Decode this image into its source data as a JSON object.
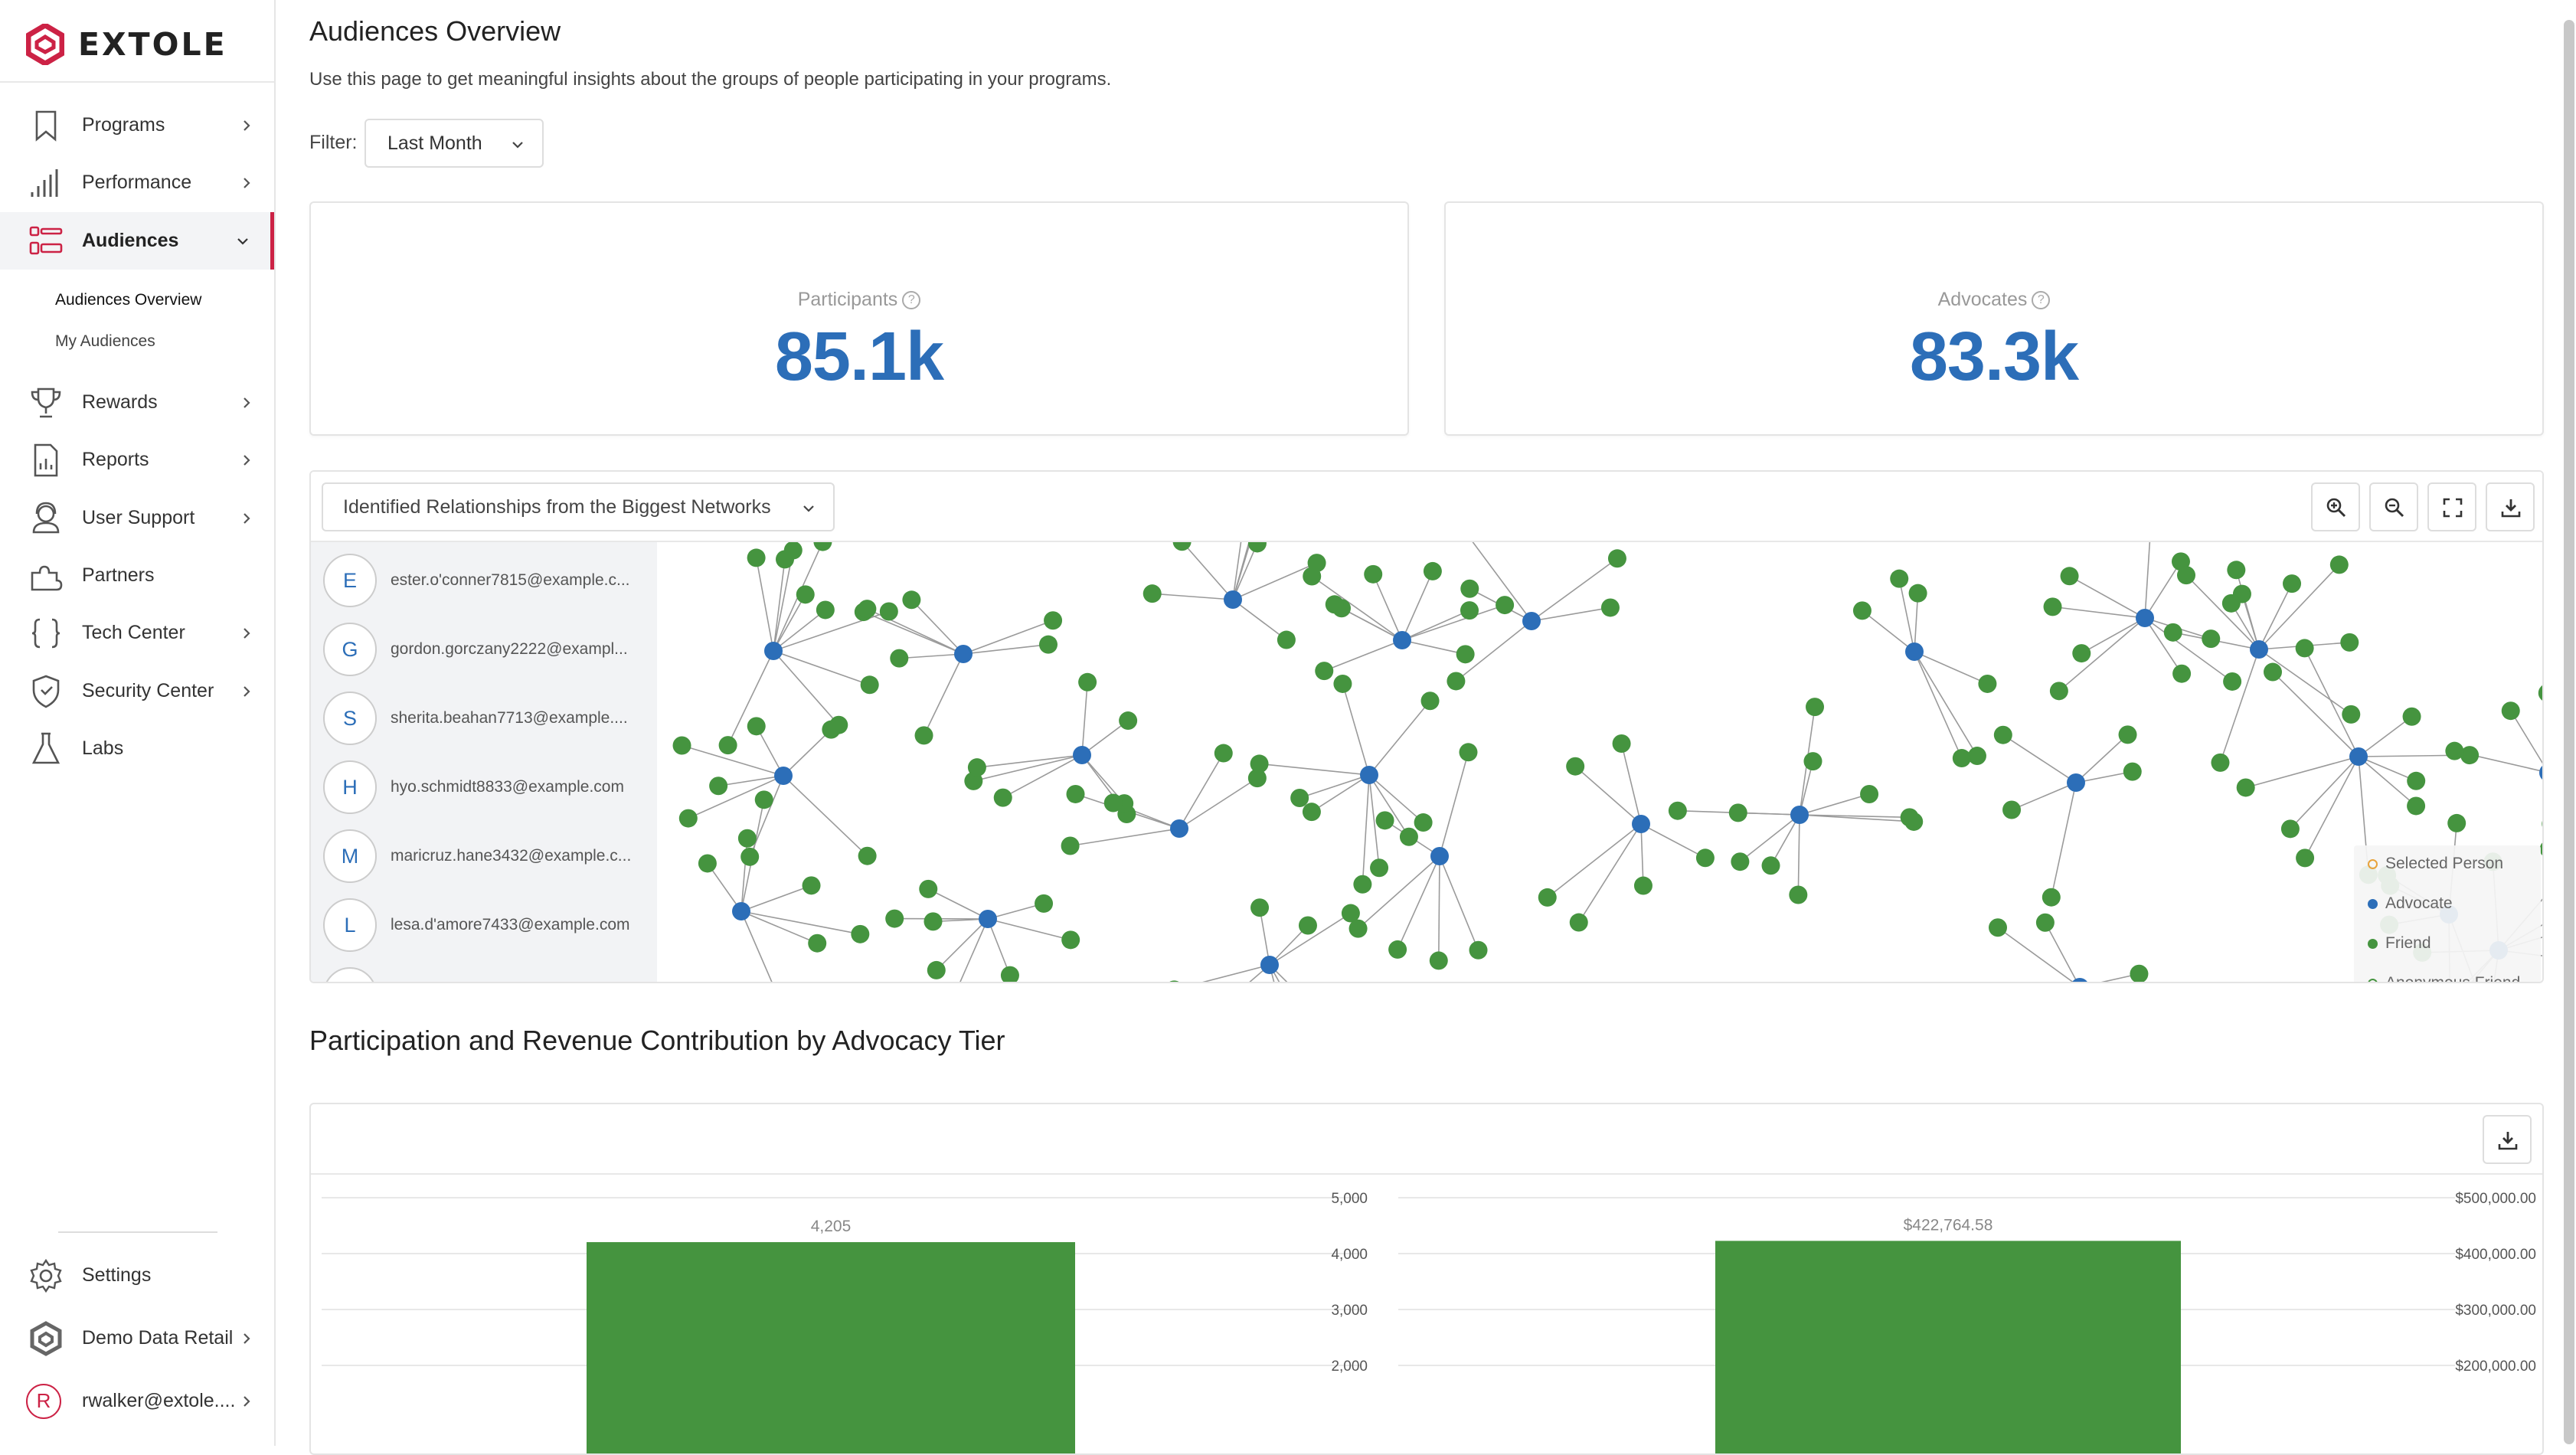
{
  "brand": {
    "name": "EXTOLE",
    "accent": "#cc2245",
    "primary": "#2c6eb8",
    "green": "#45943f"
  },
  "sidebar": {
    "items": [
      {
        "label": "Programs",
        "icon": "bookmark-icon",
        "chevron": true
      },
      {
        "label": "Performance",
        "icon": "bar-chart-icon",
        "chevron": true
      },
      {
        "label": "Audiences",
        "icon": "audiences-icon",
        "chevron": true,
        "active": true
      },
      {
        "label": "Rewards",
        "icon": "trophy-icon",
        "chevron": true
      },
      {
        "label": "Reports",
        "icon": "report-icon",
        "chevron": true
      },
      {
        "label": "User Support",
        "icon": "support-icon",
        "chevron": true
      },
      {
        "label": "Partners",
        "icon": "puzzle-icon",
        "chevron": false
      },
      {
        "label": "Tech Center",
        "icon": "braces-icon",
        "chevron": true
      },
      {
        "label": "Security Center",
        "icon": "shield-icon",
        "chevron": true
      },
      {
        "label": "Labs",
        "icon": "flask-icon",
        "chevron": false
      }
    ],
    "subitems": [
      {
        "label": "Audiences Overview",
        "active": true
      },
      {
        "label": "My Audiences",
        "active": false
      }
    ],
    "bottom": [
      {
        "label": "Settings",
        "icon": "gear-icon"
      },
      {
        "label": "Demo Data Retail",
        "icon": "extole-logo-icon"
      },
      {
        "label": "rwalker@extole....",
        "avatar": "R"
      }
    ]
  },
  "page": {
    "title": "Audiences Overview",
    "description": "Use this page to get meaningful insights about the groups of people participating in your programs.",
    "filter_label": "Filter:",
    "filter_value": "Last Month"
  },
  "stats": [
    {
      "label": "Participants",
      "value": "85.1k"
    },
    {
      "label": "Advocates",
      "value": "83.3k"
    }
  ],
  "network": {
    "dropdown": "Identified Relationships from the Biggest Networks",
    "tools": [
      "zoom-in-icon",
      "zoom-out-icon",
      "fullscreen-icon",
      "download-icon"
    ],
    "people": [
      {
        "initial": "E",
        "email": "ester.o'conner7815@example.c..."
      },
      {
        "initial": "G",
        "email": "gordon.gorczany2222@exampl..."
      },
      {
        "initial": "S",
        "email": "sherita.beahan7713@example...."
      },
      {
        "initial": "H",
        "email": "hyo.schmidt8833@example.com"
      },
      {
        "initial": "M",
        "email": "maricruz.hane3432@example.c..."
      },
      {
        "initial": "L",
        "email": "lesa.d'amore7433@example.com"
      }
    ],
    "legend": [
      {
        "label": "Selected Person",
        "color": "#e8a33c",
        "hollow": true
      },
      {
        "label": "Advocate",
        "color": "#2c6eb8",
        "hollow": false
      },
      {
        "label": "Friend",
        "color": "#45943f",
        "hollow": false
      },
      {
        "label": "Anonymous Friend",
        "color": "#45943f",
        "hollow": true
      }
    ]
  },
  "tier": {
    "title": "Participation and Revenue Contribution by Advocacy Tier"
  },
  "chart_data": [
    {
      "type": "bar",
      "title": "",
      "series": [
        {
          "values": [
            4205
          ],
          "labels": [
            "4,205"
          ]
        }
      ],
      "ylim": [
        0,
        5000
      ],
      "yticks": [
        "5,000",
        "4,000",
        "3,000",
        "2,000"
      ],
      "color": "#45943f"
    },
    {
      "type": "bar",
      "title": "",
      "series": [
        {
          "values": [
            422764.58
          ],
          "labels": [
            "$422,764.58"
          ]
        }
      ],
      "ylim": [
        0,
        500000
      ],
      "yticks": [
        "$500,000.00",
        "$400,000.00",
        "$300,000.00",
        "$200,000.00"
      ],
      "color": "#45943f"
    }
  ]
}
